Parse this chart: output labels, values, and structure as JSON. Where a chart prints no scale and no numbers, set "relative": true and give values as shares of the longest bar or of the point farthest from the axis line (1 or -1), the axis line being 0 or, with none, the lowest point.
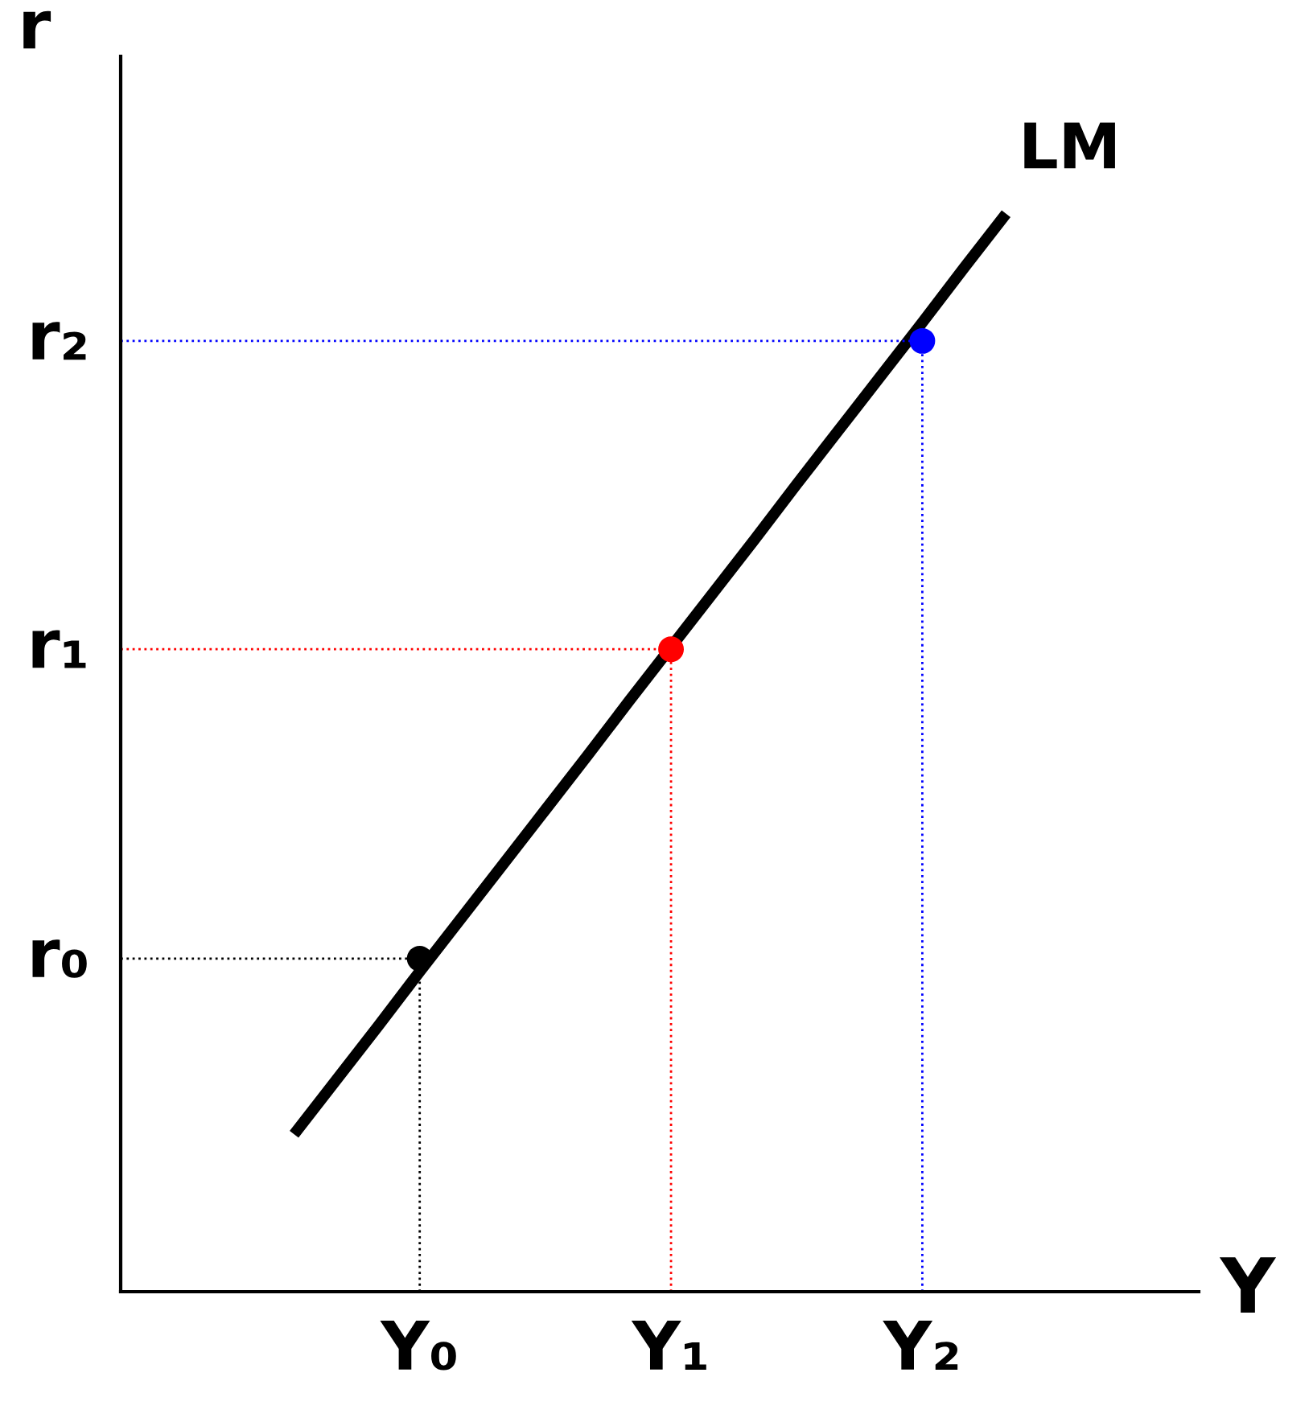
{
  "chart_data": {
    "type": "line",
    "relative": true,
    "xlabel": "Y",
    "ylabel": "r",
    "grid": false,
    "legend": false,
    "categories": [
      null,
      null,
      null,
      "Y₀",
      null,
      null,
      null,
      null,
      null,
      "Y₁",
      null,
      null,
      null,
      null,
      null,
      "Y₂",
      null,
      null
    ],
    "ref_lines": [
      {
        "axis": "y",
        "value": 0.309,
        "label": "r₀",
        "color": "#000000",
        "line_style": "dotted"
      },
      {
        "axis": "y",
        "value": 0.596,
        "label": "r₁",
        "color": "#ff0000",
        "line_style": "dotted"
      },
      {
        "axis": "y",
        "value": 0.882,
        "label": "r₂",
        "color": "#0000ff",
        "line_style": "dotted"
      }
    ],
    "series": [
      {
        "name": "LM",
        "color": "#000000",
        "values": [
          0.146,
          0.196,
          0.246,
          0.297,
          0.347,
          0.397,
          0.447,
          0.497,
          0.548,
          0.598,
          0.648,
          0.698,
          0.749,
          0.799,
          0.849,
          0.899,
          0.95,
          1
        ],
        "marker": "none",
        "line_style": "solid"
      },
      {
        "type": "scatter",
        "values": [
          null,
          null,
          null,
          0.309,
          null,
          null,
          null,
          null,
          null,
          0.596,
          null,
          null,
          null,
          null,
          null,
          0.882,
          null,
          null
        ],
        "colors": [
          null,
          null,
          null,
          "#000000",
          null,
          null,
          null,
          null,
          null,
          "#ff0000",
          null,
          null,
          null,
          null,
          null,
          "#0000ff",
          null,
          null
        ],
        "marker": "circle"
      }
    ]
  }
}
